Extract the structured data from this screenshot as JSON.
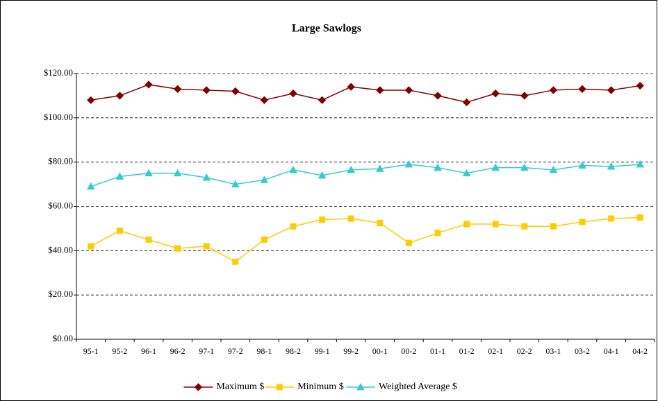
{
  "chart_data": {
    "type": "line",
    "title": "Large Sawlogs",
    "categories": [
      "95-1",
      "95-2",
      "96-1",
      "96-2",
      "97-1",
      "97-2",
      "98-1",
      "98-2",
      "99-1",
      "99-2",
      "00-1",
      "00-2",
      "01-1",
      "01-2",
      "02-1",
      "02-2",
      "03-1",
      "03-2",
      "04-1",
      "04-2"
    ],
    "series": [
      {
        "name": "Maximum $",
        "color": "#800000",
        "marker": "diamond",
        "values": [
          108,
          110,
          115,
          113,
          112.5,
          112,
          108,
          111,
          108,
          114,
          112.5,
          112.5,
          110,
          107,
          111,
          110,
          112.5,
          113,
          112.5,
          114.5
        ]
      },
      {
        "name": "Minimum $",
        "color": "#FFCC00",
        "marker": "square",
        "values": [
          42,
          49,
          45,
          41,
          42,
          35,
          45,
          51,
          54,
          54.5,
          52.5,
          43.5,
          48,
          52,
          52,
          51,
          51,
          53,
          54.5,
          55
        ]
      },
      {
        "name": "Weighted Average $",
        "color": "#33CCCC",
        "marker": "triangle",
        "values": [
          69,
          73.5,
          75,
          75,
          73,
          70,
          72,
          76.5,
          74,
          76.5,
          77,
          79,
          77.5,
          75,
          77.5,
          77.5,
          76.5,
          78.5,
          78,
          79
        ]
      }
    ],
    "ylim": [
      0,
      120
    ],
    "yticks": [
      {
        "value": 0,
        "label": "$0.00"
      },
      {
        "value": 20,
        "label": "$20.00"
      },
      {
        "value": 40,
        "label": "$40.00"
      },
      {
        "value": 60,
        "label": "$60.00"
      },
      {
        "value": 80,
        "label": "$80.00"
      },
      {
        "value": 100,
        "label": "$100.00"
      },
      {
        "value": 120,
        "label": "$120.00"
      }
    ],
    "grid": true,
    "legend": "bottom"
  }
}
